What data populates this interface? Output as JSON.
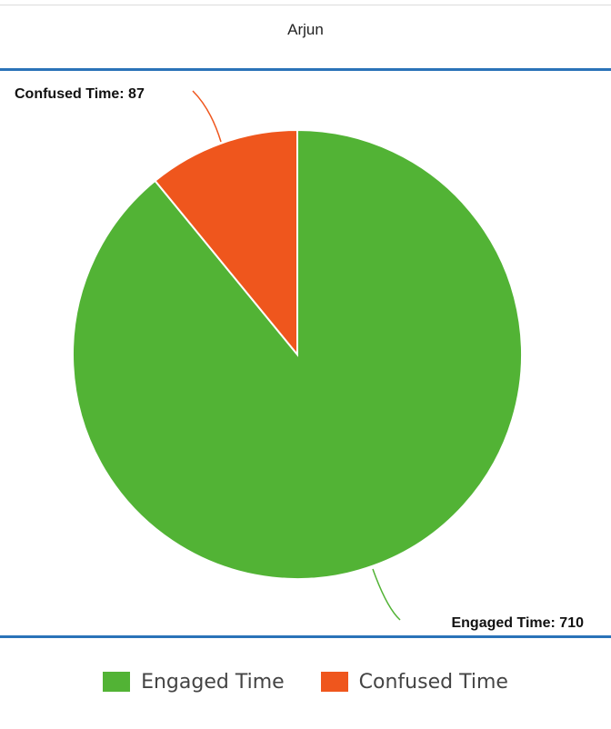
{
  "header": {
    "title": "Arjun"
  },
  "chart_data": {
    "type": "pie",
    "slices": [
      {
        "name": "Engaged Time",
        "value": 710,
        "color": "#52b335",
        "label": "Engaged Time: 710"
      },
      {
        "name": "Confused Time",
        "value": 87,
        "color": "#ef561d",
        "label": "Confused Time: 87"
      }
    ],
    "legend_placement": "bottom"
  },
  "legend": {
    "items": [
      {
        "label": "Engaged Time",
        "color": "#52b335"
      },
      {
        "label": "Confused Time",
        "color": "#ef561d"
      }
    ]
  }
}
